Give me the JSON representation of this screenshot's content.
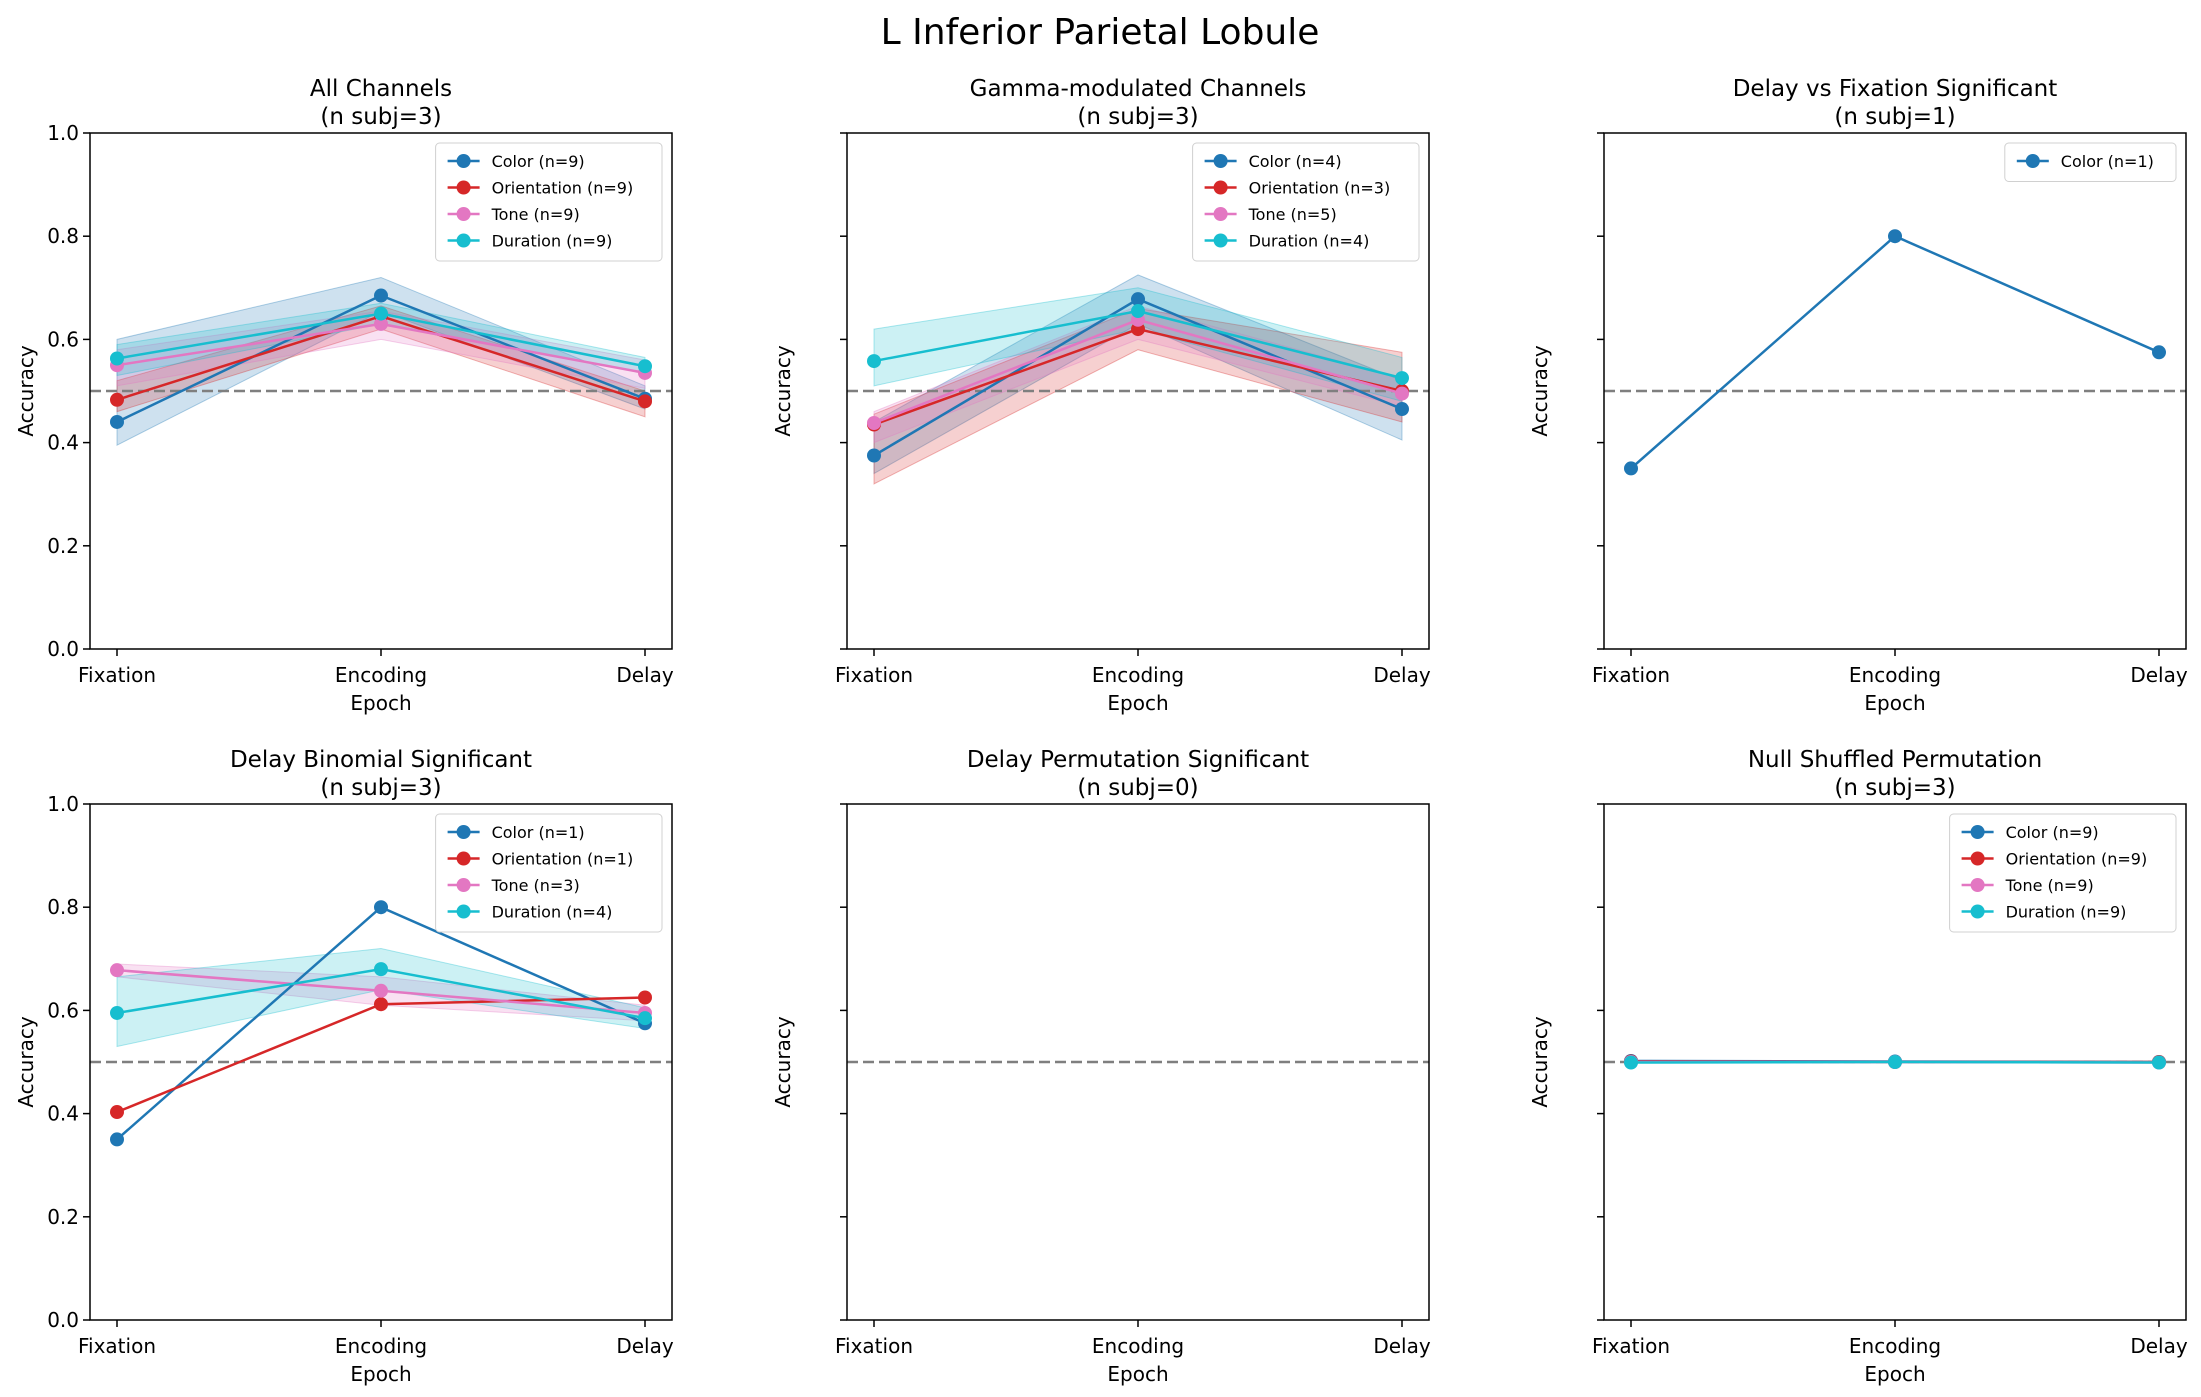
{
  "figure": {
    "suptitle": "L Inferior Parietal Lobule"
  },
  "colors": {
    "Color": "#1f77b4",
    "Orientation": "#d62728",
    "Tone": "#e377c2",
    "Duration": "#17becf",
    "chance": "#7f7f7f"
  },
  "chart_data": [
    {
      "type": "line",
      "title_line1": "All Channels",
      "title_line2": "(n subj=3)",
      "xlabel": "Epoch",
      "ylabel": "Accuracy",
      "categories": [
        "Fixation",
        "Encoding",
        "Delay"
      ],
      "ylim": [
        0,
        1
      ],
      "yticks": [
        "0.0",
        "0.2",
        "0.4",
        "0.6",
        "0.8",
        "1.0"
      ],
      "show_ytick_labels": true,
      "chance": 0.5,
      "legend": "top-right",
      "series": [
        {
          "name": "Color (n=9)",
          "key": "Color",
          "values": [
            0.44,
            0.685,
            0.485
          ],
          "band_low": [
            0.395,
            0.655,
            0.465
          ],
          "band_high": [
            0.6,
            0.72,
            0.51
          ]
        },
        {
          "name": "Orientation (n=9)",
          "key": "Orientation",
          "values": [
            0.483,
            0.645,
            0.48
          ],
          "band_low": [
            0.46,
            0.62,
            0.45
          ],
          "band_high": [
            0.52,
            0.665,
            0.5
          ]
        },
        {
          "name": "Tone (n=9)",
          "key": "Tone",
          "values": [
            0.55,
            0.63,
            0.535
          ],
          "band_low": [
            0.51,
            0.6,
            0.505
          ],
          "band_high": [
            0.58,
            0.655,
            0.56
          ]
        },
        {
          "name": "Duration (n=9)",
          "key": "Duration",
          "values": [
            0.563,
            0.65,
            0.548
          ],
          "band_low": [
            0.53,
            0.63,
            0.535
          ],
          "band_high": [
            0.59,
            0.67,
            0.565
          ]
        }
      ]
    },
    {
      "type": "line",
      "title_line1": "Gamma-modulated Channels",
      "title_line2": "(n subj=3)",
      "xlabel": "Epoch",
      "ylabel": "Accuracy",
      "categories": [
        "Fixation",
        "Encoding",
        "Delay"
      ],
      "ylim": [
        0,
        1
      ],
      "yticks": [
        "0.0",
        "0.2",
        "0.4",
        "0.6",
        "0.8",
        "1.0"
      ],
      "show_ytick_labels": false,
      "chance": 0.5,
      "legend": "top-right",
      "series": [
        {
          "name": "Color (n=4)",
          "key": "Color",
          "values": [
            0.375,
            0.678,
            0.465
          ],
          "band_low": [
            0.34,
            0.63,
            0.405
          ],
          "band_high": [
            0.44,
            0.725,
            0.52
          ]
        },
        {
          "name": "Orientation (n=3)",
          "key": "Orientation",
          "values": [
            0.435,
            0.62,
            0.5
          ],
          "band_low": [
            0.32,
            0.58,
            0.44
          ],
          "band_high": [
            0.455,
            0.66,
            0.575
          ]
        },
        {
          "name": "Tone (n=5)",
          "key": "Tone",
          "values": [
            0.438,
            0.638,
            0.495
          ],
          "band_low": [
            0.4,
            0.6,
            0.47
          ],
          "band_high": [
            0.46,
            0.665,
            0.525
          ]
        },
        {
          "name": "Duration (n=4)",
          "key": "Duration",
          "values": [
            0.558,
            0.655,
            0.525
          ],
          "band_low": [
            0.51,
            0.62,
            0.48
          ],
          "band_high": [
            0.62,
            0.7,
            0.565
          ]
        }
      ]
    },
    {
      "type": "line",
      "title_line1": "Delay vs Fixation Significant",
      "title_line2": "(n subj=1)",
      "xlabel": "Epoch",
      "ylabel": "Accuracy",
      "categories": [
        "Fixation",
        "Encoding",
        "Delay"
      ],
      "ylim": [
        0,
        1
      ],
      "yticks": [
        "0.0",
        "0.2",
        "0.4",
        "0.6",
        "0.8",
        "1.0"
      ],
      "show_ytick_labels": false,
      "chance": 0.5,
      "legend": "top-right",
      "series": [
        {
          "name": "Color (n=1)",
          "key": "Color",
          "values": [
            0.35,
            0.8,
            0.575
          ]
        }
      ]
    },
    {
      "type": "line",
      "title_line1": "Delay Binomial Significant",
      "title_line2": "(n subj=3)",
      "xlabel": "Epoch",
      "ylabel": "Accuracy",
      "categories": [
        "Fixation",
        "Encoding",
        "Delay"
      ],
      "ylim": [
        0,
        1
      ],
      "yticks": [
        "0.0",
        "0.2",
        "0.4",
        "0.6",
        "0.8",
        "1.0"
      ],
      "show_ytick_labels": true,
      "chance": 0.5,
      "legend": "top-right",
      "series": [
        {
          "name": "Color (n=1)",
          "key": "Color",
          "values": [
            0.35,
            0.8,
            0.575
          ]
        },
        {
          "name": "Orientation (n=1)",
          "key": "Orientation",
          "values": [
            0.403,
            0.612,
            0.625
          ]
        },
        {
          "name": "Tone (n=3)",
          "key": "Tone",
          "values": [
            0.678,
            0.638,
            0.595
          ],
          "band_low": [
            0.665,
            0.61,
            0.58
          ],
          "band_high": [
            0.69,
            0.665,
            0.61
          ]
        },
        {
          "name": "Duration (n=4)",
          "key": "Duration",
          "values": [
            0.595,
            0.68,
            0.585
          ],
          "band_low": [
            0.53,
            0.64,
            0.565
          ],
          "band_high": [
            0.665,
            0.72,
            0.605
          ]
        }
      ]
    },
    {
      "type": "line",
      "title_line1": "Delay Permutation Significant",
      "title_line2": "(n subj=0)",
      "xlabel": "Epoch",
      "ylabel": "Accuracy",
      "categories": [
        "Fixation",
        "Encoding",
        "Delay"
      ],
      "ylim": [
        0,
        1
      ],
      "yticks": [
        "0.0",
        "0.2",
        "0.4",
        "0.6",
        "0.8",
        "1.0"
      ],
      "show_ytick_labels": false,
      "chance": 0.5,
      "legend": "none",
      "series": []
    },
    {
      "type": "line",
      "title_line1": "Null Shuffled Permutation",
      "title_line2": "(n subj=3)",
      "xlabel": "Epoch",
      "ylabel": "Accuracy",
      "categories": [
        "Fixation",
        "Encoding",
        "Delay"
      ],
      "ylim": [
        0,
        1
      ],
      "yticks": [
        "0.0",
        "0.2",
        "0.4",
        "0.6",
        "0.8",
        "1.0"
      ],
      "show_ytick_labels": false,
      "chance": 0.5,
      "legend": "top-right",
      "series": [
        {
          "name": "Color (n=9)",
          "key": "Color",
          "values": [
            0.502,
            0.501,
            0.5
          ]
        },
        {
          "name": "Orientation (n=9)",
          "key": "Orientation",
          "values": [
            0.501,
            0.5,
            0.5
          ]
        },
        {
          "name": "Tone (n=9)",
          "key": "Tone",
          "values": [
            0.5,
            0.5,
            0.499
          ]
        },
        {
          "name": "Duration (n=9)",
          "key": "Duration",
          "values": [
            0.499,
            0.5,
            0.499
          ]
        }
      ]
    }
  ]
}
